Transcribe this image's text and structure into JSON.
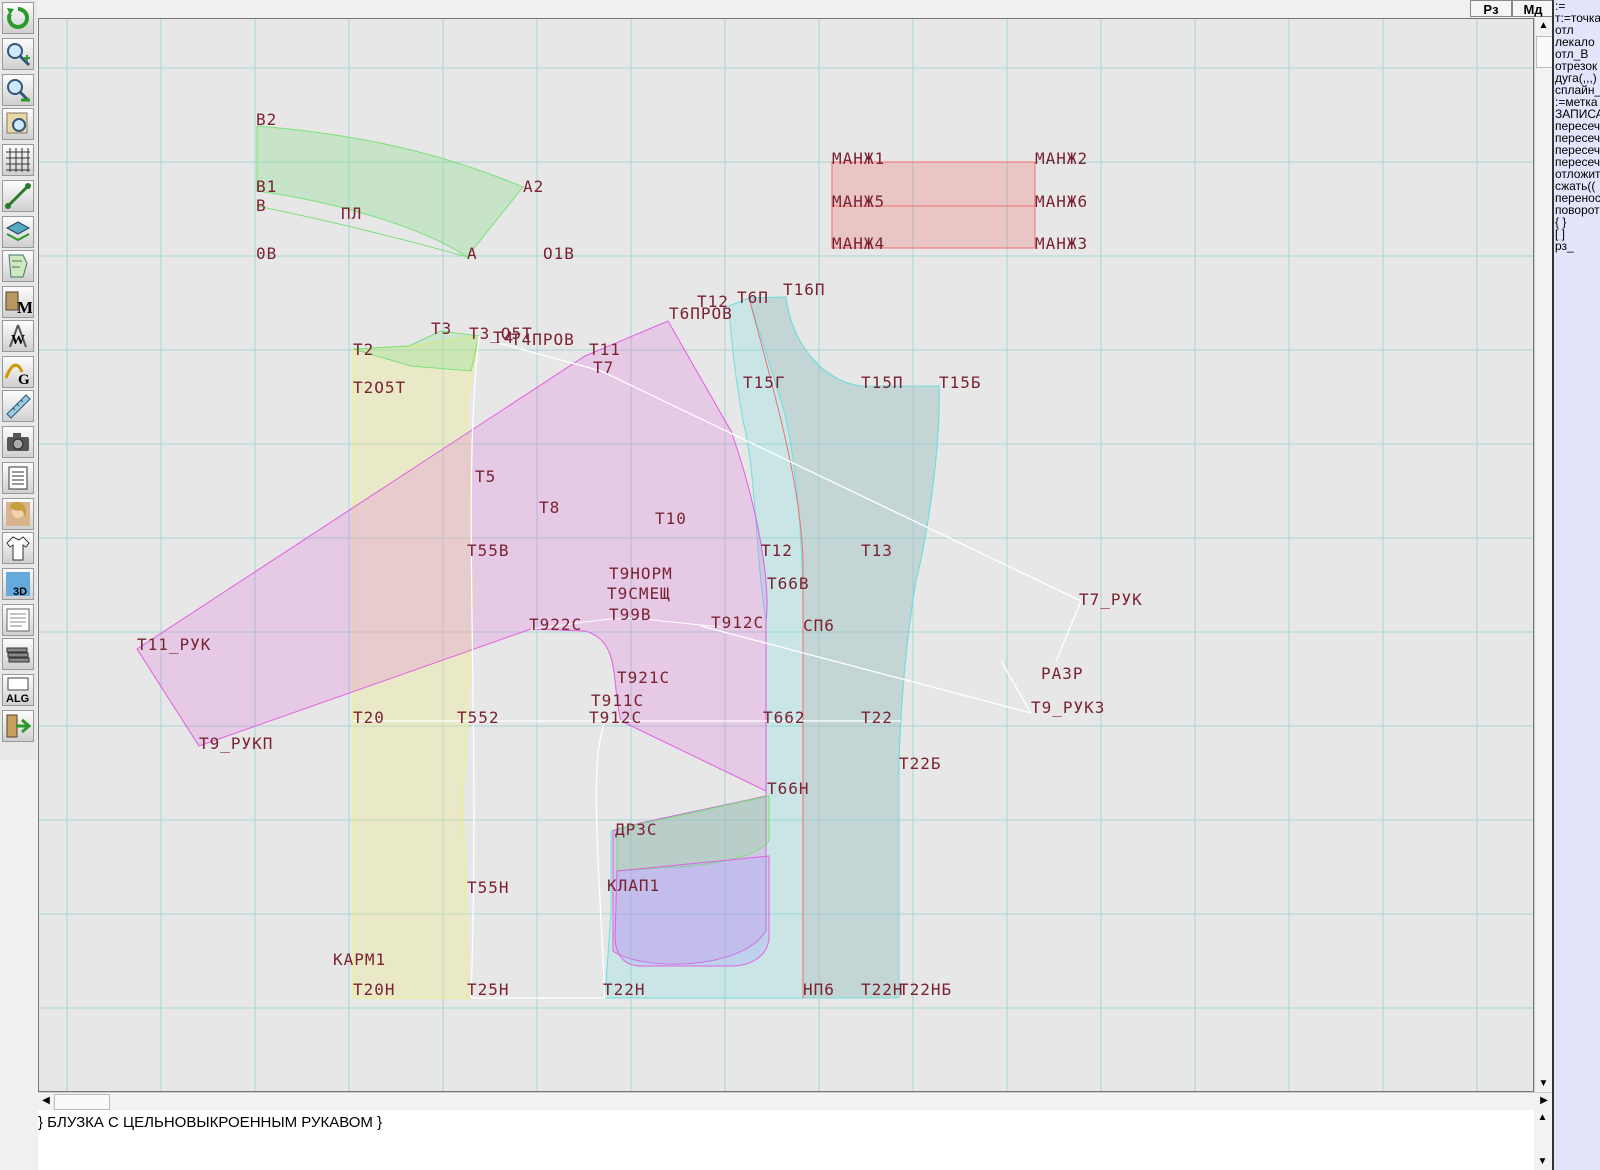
{
  "header": {
    "rz_label": "Рз",
    "md_label": "Мд"
  },
  "toolbar": {
    "tools": [
      {
        "name": "refresh-tool",
        "icon": "refresh-icon"
      },
      {
        "name": "zoom-in-tool",
        "icon": "zoom-in-icon"
      },
      {
        "name": "zoom-out-tool",
        "icon": "zoom-out-icon"
      },
      {
        "name": "zoom-fit-tool",
        "icon": "zoom-fit-icon"
      },
      {
        "name": "grid-tool",
        "icon": "grid-icon"
      },
      {
        "name": "line-tool",
        "icon": "line-icon"
      },
      {
        "name": "layers-tool",
        "icon": "layers-icon"
      },
      {
        "name": "pattern-tool",
        "icon": "pattern-icon"
      },
      {
        "name": "measure-m-tool",
        "icon": "measure-m-icon",
        "letter": "M"
      },
      {
        "name": "compass-w-tool",
        "icon": "compass-w-icon",
        "letter": "W"
      },
      {
        "name": "curve-g-tool",
        "icon": "curve-g-icon",
        "letter": "G"
      },
      {
        "name": "ruler-tool",
        "icon": "ruler-icon"
      },
      {
        "name": "camera-tool",
        "icon": "camera-icon"
      },
      {
        "name": "table-tool",
        "icon": "table-icon"
      },
      {
        "name": "model-photo-tool",
        "icon": "model-photo-icon"
      },
      {
        "name": "garment-tool",
        "icon": "garment-icon"
      },
      {
        "name": "view-3d-tool",
        "icon": "view-3d-icon",
        "letter": "3D"
      },
      {
        "name": "document-tool",
        "icon": "document-icon"
      },
      {
        "name": "stack-tool",
        "icon": "stack-icon"
      },
      {
        "name": "algorithm-tool",
        "icon": "algorithm-icon",
        "letter": "ALG"
      },
      {
        "name": "exit-tool",
        "icon": "exit-icon"
      }
    ]
  },
  "canvas": {
    "colors": {
      "background": "#e7e7e7",
      "grid": "#a9d4d4",
      "piece_green": "#7be07b",
      "piece_red": "#f07070",
      "piece_magenta": "#e060e0",
      "piece_cyan": "#70dede",
      "piece_yellow": "#f0f080",
      "label": "#7a2232"
    },
    "labels": [
      "В2",
      "В1",
      "В",
      "0В",
      "ПЛ",
      "А2",
      "А",
      "О1В",
      "МАНЖ1",
      "МАНЖ2",
      "МАНЖ5",
      "МАНЖ6",
      "МАНЖ4",
      "МАНЖ3",
      "Т3",
      "Т3_О5Т",
      "Т4",
      "Т4ПРОВ",
      "Т2",
      "Т11",
      "Т7",
      "Т2О5Т",
      "Т6ПРОВ",
      "Т12",
      "Т6П",
      "Т16П",
      "Т15Г",
      "Т15П",
      "Т15Б",
      "Т5",
      "Т8",
      "Т10",
      "Т12",
      "Т13",
      "Т55В",
      "Т9НОРМ",
      "Т66В",
      "Т9СМЕЩ",
      "Т99В",
      "Т922С",
      "Т912С",
      "СП6",
      "Т7_РУК",
      "Т11_РУК",
      "Т921С",
      "РАЗР",
      "Т911С",
      "Т9_РУК3",
      "Т20",
      "Т552",
      "Т912С",
      "Т662",
      "Т22",
      "Т9_РУКП",
      "Т22Б",
      "Т66Н",
      "ДР3С",
      "Т55Н",
      "КЛАП1",
      "КАРМ1",
      "Т20Н",
      "Т25Н",
      "Т22Н",
      "НП6",
      "Т22Н",
      "Т22НБ"
    ]
  },
  "command_panel": {
    "items": [
      ":=",
      "т:=точка",
      "отл",
      "лекало",
      "отл_В",
      "отрезок",
      "дуга(,,,)",
      "сплайн_",
      ":=метка",
      "ЗАПИСА",
      "пересеч",
      "пересеч",
      "пересеч",
      "пересеч",
      "отложит",
      "сжать((",
      "перенос",
      "поворот",
      "{ }",
      "[ ]",
      "рз_"
    ]
  },
  "text_line": {
    "content": "} БЛУЗКА С ЦЕЛЬНОВЫКРОЕННЫМ РУКАВОМ }"
  }
}
